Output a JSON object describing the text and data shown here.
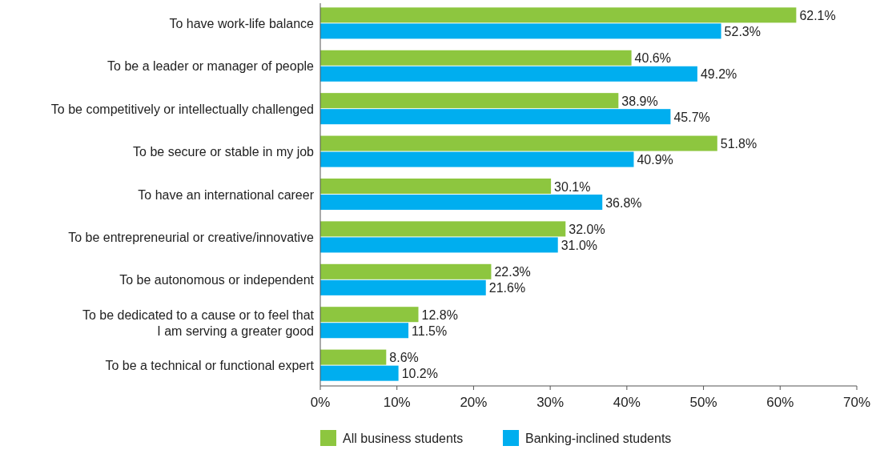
{
  "chart_data": {
    "type": "bar",
    "orientation": "horizontal",
    "categories": [
      "To have work-life balance",
      "To be a leader or manager of people",
      "To be competitively or intellectually challenged",
      "To be secure or stable in my job",
      "To have an international career",
      "To be entrepreneurial or creative/innovative",
      "To be autonomous or independent",
      "To be dedicated to a cause or to feel that\nI am serving a greater good",
      "To be a technical or functional expert"
    ],
    "series": [
      {
        "name": "All business students",
        "color": "#8dc63f",
        "values": [
          62.1,
          40.6,
          38.9,
          51.8,
          30.1,
          32.0,
          22.3,
          12.8,
          8.6
        ],
        "value_labels": [
          "62.1%",
          "40.6%",
          "38.9%",
          "51.8%",
          "30.1%",
          "32.0%",
          "22.3%",
          "12.8%",
          "8.6%"
        ]
      },
      {
        "name": "Banking-inclined students",
        "color": "#00aeef",
        "values": [
          52.3,
          49.2,
          45.7,
          40.9,
          36.8,
          31.0,
          21.6,
          11.5,
          10.2
        ],
        "value_labels": [
          "52.3%",
          "49.2%",
          "45.7%",
          "40.9%",
          "36.8%",
          "31.0%",
          "21.6%",
          "11.5%",
          "10.2%"
        ]
      }
    ],
    "xlim": [
      0,
      70
    ],
    "xticks": [
      {
        "value": 0,
        "label": "0%"
      },
      {
        "value": 10,
        "label": "10%"
      },
      {
        "value": 20,
        "label": "20%"
      },
      {
        "value": 30,
        "label": "30%"
      },
      {
        "value": 40,
        "label": "40%"
      },
      {
        "value": 50,
        "label": "50%"
      },
      {
        "value": 60,
        "label": "60%"
      },
      {
        "value": 70,
        "label": "70%"
      }
    ],
    "grid": false,
    "legend": "bottom"
  }
}
